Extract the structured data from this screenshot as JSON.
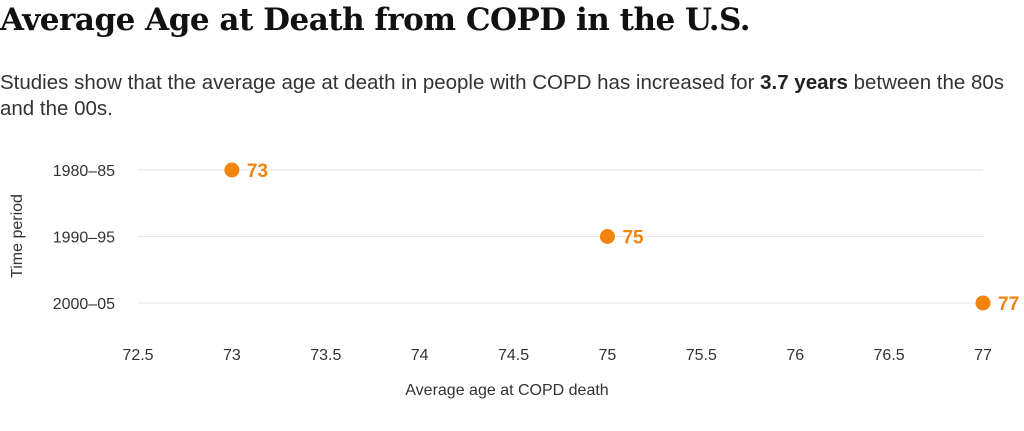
{
  "title": "Average Age at Death from COPD in the U.S.",
  "subtitle": {
    "before": "Studies show that the average age at death in people with COPD has increased for ",
    "highlight": "3.7 years",
    "after": " between the 80s and the 00s."
  },
  "colors": {
    "dot": "#F2840F",
    "grid": "#E6E6E6",
    "text": "#333333"
  },
  "chart_data": {
    "type": "scatter",
    "categories": [
      "1980–85",
      "1990–95",
      "2000–05"
    ],
    "values": [
      73,
      75,
      77
    ],
    "data_labels": [
      "73",
      "75",
      "77"
    ],
    "xlabel": "Average age at COPD death",
    "ylabel": "Time period",
    "xlim": [
      72.5,
      77
    ],
    "xticks": [
      "72.5",
      "73",
      "73.5",
      "74",
      "74.5",
      "75",
      "75.5",
      "76",
      "76.5",
      "77"
    ],
    "grid": true,
    "legend": "none"
  }
}
